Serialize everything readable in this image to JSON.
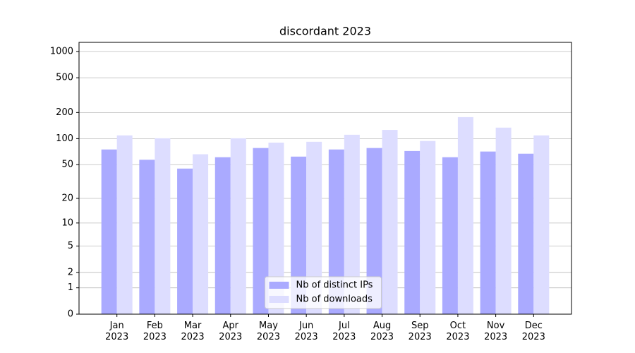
{
  "chart_data": {
    "type": "bar",
    "title": "discordant 2023",
    "categories": [
      "Jan\n2023",
      "Feb\n2023",
      "Mar\n2023",
      "Apr\n2023",
      "May\n2023",
      "Jun\n2023",
      "Jul\n2023",
      "Aug\n2023",
      "Sep\n2023",
      "Oct\n2023",
      "Nov\n2023",
      "Dec\n2023"
    ],
    "series": [
      {
        "name": "Nb of distinct IPs",
        "color": "#aaaaff",
        "values": [
          75,
          57,
          45,
          61,
          78,
          62,
          75,
          78,
          72,
          61,
          71,
          67
        ]
      },
      {
        "name": "Nb of downloads",
        "color": "#ddddff",
        "values": [
          109,
          101,
          66,
          101,
          90,
          92,
          111,
          126,
          94,
          177,
          134,
          109
        ]
      }
    ],
    "yscale": "log1p",
    "ylim": [
      0,
      1270
    ],
    "yticks": [
      0,
      1,
      2,
      5,
      10,
      20,
      50,
      100,
      200,
      500,
      1000
    ],
    "grid": true,
    "legend": "lower center"
  }
}
